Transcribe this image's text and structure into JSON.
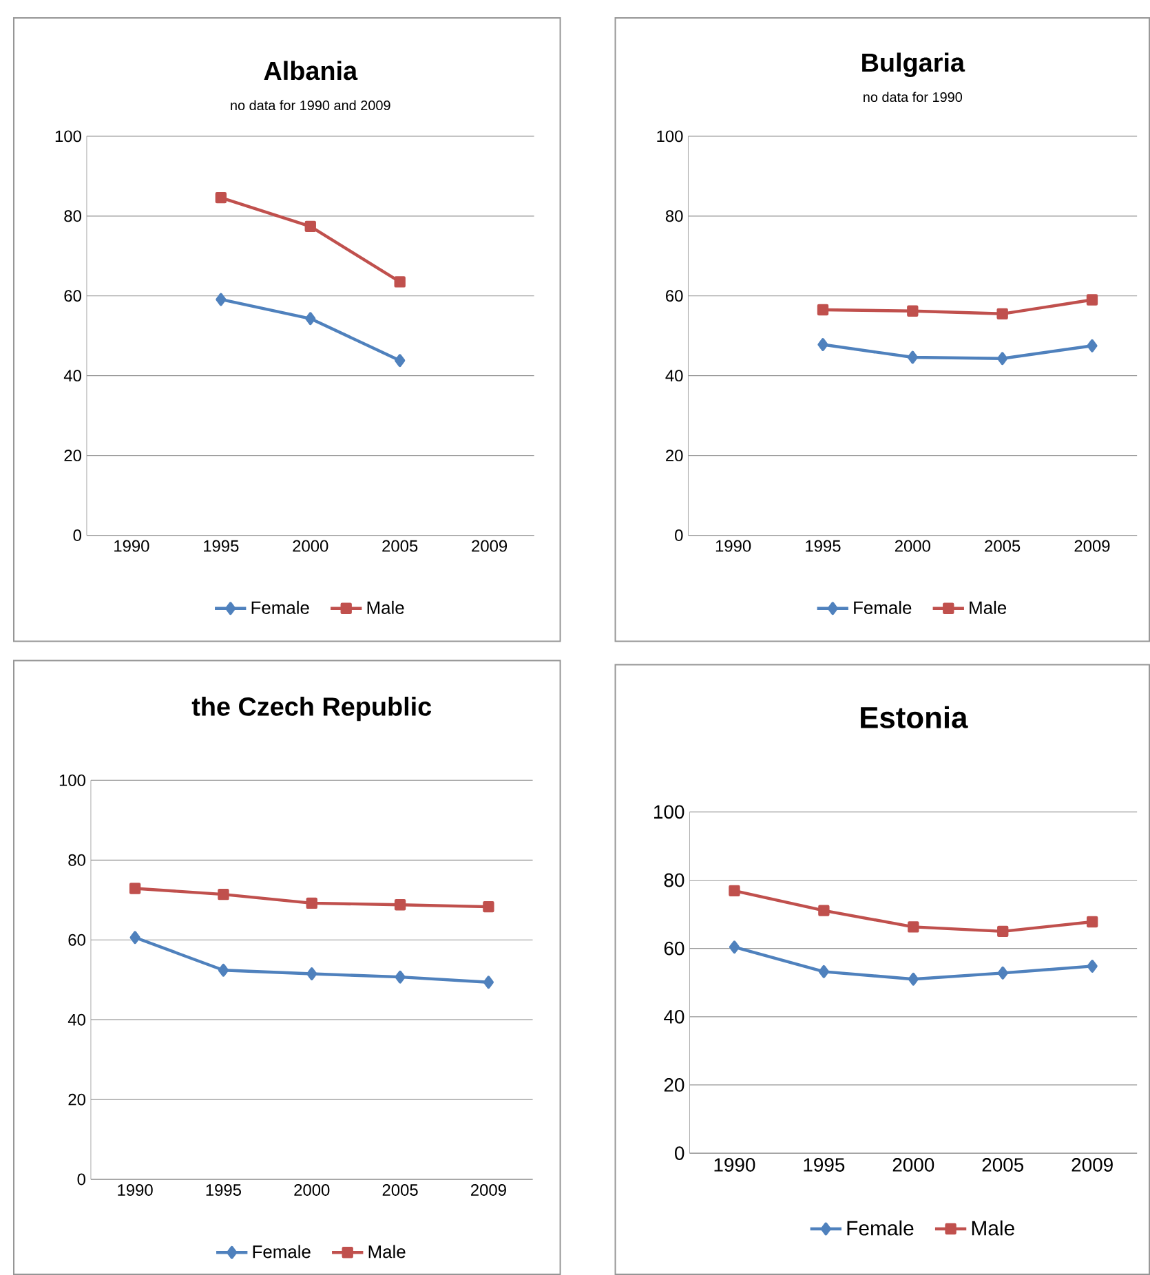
{
  "chart_data": [
    {
      "type": "line",
      "title": "Albania",
      "subtitle": "no data for 1990 and 2009",
      "categories": [
        "1990",
        "1995",
        "2000",
        "2005",
        "2009"
      ],
      "ylim": [
        0,
        100
      ],
      "yticks": [
        0,
        20,
        40,
        60,
        80,
        100
      ],
      "grid": "y",
      "legend": "bottom",
      "series": [
        {
          "name": "Female",
          "color": "#4f81bd",
          "marker": "diamond",
          "values": [
            null,
            59.1,
            54.3,
            43.8,
            null
          ]
        },
        {
          "name": "Male",
          "color": "#c0504d",
          "marker": "square",
          "values": [
            null,
            84.6,
            77.4,
            63.5,
            null
          ]
        }
      ]
    },
    {
      "type": "line",
      "title": "Bulgaria",
      "subtitle": "no data for 1990",
      "categories": [
        "1990",
        "1995",
        "2000",
        "2005",
        "2009"
      ],
      "ylim": [
        0,
        100
      ],
      "yticks": [
        0,
        20,
        40,
        60,
        80,
        100
      ],
      "grid": "y",
      "legend": "bottom",
      "series": [
        {
          "name": "Female",
          "color": "#4f81bd",
          "marker": "diamond",
          "values": [
            null,
            47.8,
            44.6,
            44.3,
            47.5
          ]
        },
        {
          "name": "Male",
          "color": "#c0504d",
          "marker": "square",
          "values": [
            null,
            56.5,
            56.2,
            55.5,
            59.0
          ]
        }
      ]
    },
    {
      "type": "line",
      "title": "the Czech Republic",
      "categories": [
        "1990",
        "1995",
        "2000",
        "2005",
        "2009"
      ],
      "ylim": [
        0,
        100
      ],
      "yticks": [
        0,
        20,
        40,
        60,
        80,
        100
      ],
      "grid": "y",
      "legend": "bottom",
      "series": [
        {
          "name": "Female",
          "color": "#4f81bd",
          "marker": "diamond",
          "values": [
            60.6,
            52.4,
            51.5,
            50.7,
            49.4
          ]
        },
        {
          "name": "Male",
          "color": "#c0504d",
          "marker": "square",
          "values": [
            72.9,
            71.4,
            69.2,
            68.8,
            68.3
          ]
        }
      ]
    },
    {
      "type": "line",
      "title": "Estonia",
      "categories": [
        "1990",
        "1995",
        "2000",
        "2005",
        "2009"
      ],
      "ylim": [
        0,
        100
      ],
      "yticks": [
        0,
        20,
        40,
        60,
        80,
        100
      ],
      "grid": "y",
      "legend": "bottom",
      "series": [
        {
          "name": "Female",
          "color": "#4f81bd",
          "marker": "diamond",
          "values": [
            60.4,
            53.2,
            51.0,
            52.8,
            54.8
          ]
        },
        {
          "name": "Male",
          "color": "#c0504d",
          "marker": "square",
          "values": [
            76.9,
            71.1,
            66.3,
            65.0,
            67.8
          ]
        }
      ]
    }
  ]
}
